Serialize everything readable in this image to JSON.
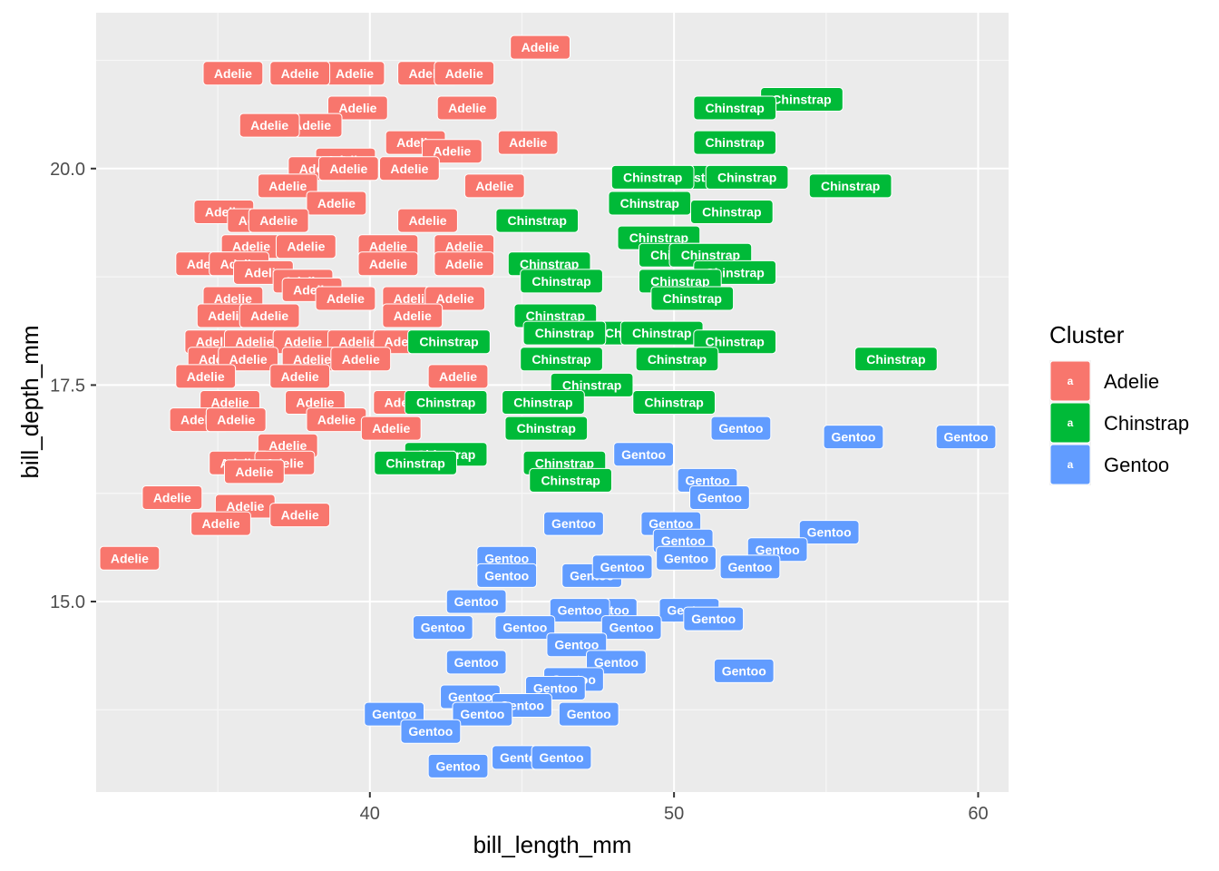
{
  "chart_data": {
    "type": "scatter",
    "title": "",
    "xlabel": "bill_length_mm",
    "ylabel": "bill_depth_mm",
    "xlim": [
      31,
      61
    ],
    "ylim": [
      12.8,
      21.8
    ],
    "x_ticks": [
      40,
      50,
      60
    ],
    "x_tick_labels": [
      "40",
      "50",
      "60"
    ],
    "y_ticks": [
      15.0,
      17.5,
      20.0
    ],
    "y_tick_labels": [
      "15.0",
      "17.5",
      "20.0"
    ],
    "grid": true,
    "legend": {
      "title": "Cluster",
      "position": "right",
      "key_glyph": "a",
      "entries": [
        {
          "label": "Adelie",
          "color": "#F8766D"
        },
        {
          "label": "Chinstrap",
          "color": "#00BA38"
        },
        {
          "label": "Gentoo",
          "color": "#619CFF"
        }
      ]
    },
    "series": [
      {
        "name": "Adelie",
        "color": "#F8766D",
        "points": [
          [
            45.6,
            21.4
          ],
          [
            35.5,
            21.1
          ],
          [
            39.5,
            21.1
          ],
          [
            37.7,
            21.1
          ],
          [
            41.9,
            21.1
          ],
          [
            43.1,
            21.1
          ],
          [
            39.6,
            20.7
          ],
          [
            43.2,
            20.7
          ],
          [
            38.1,
            20.5
          ],
          [
            36.7,
            20.5
          ],
          [
            41.5,
            20.3
          ],
          [
            42.7,
            20.2
          ],
          [
            45.2,
            20.3
          ],
          [
            39.2,
            20.1
          ],
          [
            38.3,
            20.0
          ],
          [
            39.3,
            20.0
          ],
          [
            41.3,
            20.0
          ],
          [
            37.3,
            19.8
          ],
          [
            44.1,
            19.8
          ],
          [
            38.9,
            19.6
          ],
          [
            35.2,
            19.5
          ],
          [
            36.3,
            19.4
          ],
          [
            41.9,
            19.4
          ],
          [
            37.0,
            19.4
          ],
          [
            36.1,
            19.1
          ],
          [
            37.9,
            19.1
          ],
          [
            40.6,
            19.1
          ],
          [
            43.1,
            19.1
          ],
          [
            34.6,
            18.9
          ],
          [
            35.7,
            18.9
          ],
          [
            40.6,
            18.9
          ],
          [
            36.5,
            18.8
          ],
          [
            43.1,
            18.9
          ],
          [
            37.8,
            18.7
          ],
          [
            38.1,
            18.6
          ],
          [
            35.5,
            18.5
          ],
          [
            39.2,
            18.5
          ],
          [
            41.4,
            18.5
          ],
          [
            42.8,
            18.5
          ],
          [
            35.3,
            18.3
          ],
          [
            36.7,
            18.3
          ],
          [
            41.4,
            18.3
          ],
          [
            34.9,
            18.0
          ],
          [
            36.2,
            18.0
          ],
          [
            37.8,
            18.0
          ],
          [
            39.6,
            18.0
          ],
          [
            41.1,
            18.0
          ],
          [
            35.0,
            17.8
          ],
          [
            36.0,
            17.8
          ],
          [
            38.1,
            17.8
          ],
          [
            39.7,
            17.8
          ],
          [
            34.6,
            17.6
          ],
          [
            37.7,
            17.6
          ],
          [
            42.9,
            17.6
          ],
          [
            35.4,
            17.3
          ],
          [
            38.2,
            17.3
          ],
          [
            41.1,
            17.3
          ],
          [
            34.4,
            17.1
          ],
          [
            35.6,
            17.1
          ],
          [
            38.9,
            17.1
          ],
          [
            40.7,
            17.0
          ],
          [
            37.3,
            16.8
          ],
          [
            35.7,
            16.6
          ],
          [
            37.2,
            16.6
          ],
          [
            36.2,
            16.5
          ],
          [
            35.9,
            16.1
          ],
          [
            33.5,
            16.2
          ],
          [
            37.7,
            16.0
          ],
          [
            35.1,
            15.9
          ],
          [
            32.1,
            15.5
          ]
        ]
      },
      {
        "name": "Chinstrap",
        "color": "#00BA38",
        "points": [
          [
            54.2,
            20.8
          ],
          [
            52.0,
            20.7
          ],
          [
            52.0,
            20.3
          ],
          [
            50.7,
            19.9
          ],
          [
            52.4,
            19.9
          ],
          [
            49.3,
            19.9
          ],
          [
            55.8,
            19.8
          ],
          [
            49.2,
            19.6
          ],
          [
            51.9,
            19.5
          ],
          [
            45.5,
            19.4
          ],
          [
            49.5,
            19.2
          ],
          [
            50.2,
            19.0
          ],
          [
            51.2,
            19.0
          ],
          [
            45.9,
            18.9
          ],
          [
            52.0,
            18.8
          ],
          [
            46.3,
            18.7
          ],
          [
            50.2,
            18.7
          ],
          [
            50.6,
            18.5
          ],
          [
            46.1,
            18.3
          ],
          [
            48.7,
            18.1
          ],
          [
            42.6,
            18.0
          ],
          [
            46.4,
            18.1
          ],
          [
            49.6,
            18.1
          ],
          [
            52.0,
            18.0
          ],
          [
            50.1,
            17.8
          ],
          [
            57.3,
            17.8
          ],
          [
            46.3,
            17.8
          ],
          [
            47.3,
            17.5
          ],
          [
            50.0,
            17.3
          ],
          [
            45.7,
            17.3
          ],
          [
            42.5,
            17.3
          ],
          [
            45.8,
            17.0
          ],
          [
            42.5,
            16.7
          ],
          [
            41.5,
            16.6
          ],
          [
            46.4,
            16.6
          ],
          [
            46.6,
            16.4
          ]
        ]
      },
      {
        "name": "Gentoo",
        "color": "#619CFF",
        "points": [
          [
            52.2,
            17.0
          ],
          [
            55.9,
            16.9
          ],
          [
            59.6,
            16.9
          ],
          [
            49.0,
            16.7
          ],
          [
            51.1,
            16.4
          ],
          [
            51.5,
            16.2
          ],
          [
            46.7,
            15.9
          ],
          [
            49.9,
            15.9
          ],
          [
            55.1,
            15.8
          ],
          [
            50.3,
            15.7
          ],
          [
            53.4,
            15.6
          ],
          [
            52.5,
            15.4
          ],
          [
            44.5,
            15.5
          ],
          [
            50.4,
            15.5
          ],
          [
            47.3,
            15.3
          ],
          [
            48.3,
            15.4
          ],
          [
            44.5,
            15.3
          ],
          [
            47.8,
            14.9
          ],
          [
            50.5,
            14.9
          ],
          [
            43.5,
            15.0
          ],
          [
            46.9,
            14.9
          ],
          [
            48.6,
            14.7
          ],
          [
            51.3,
            14.8
          ],
          [
            42.4,
            14.7
          ],
          [
            45.1,
            14.7
          ],
          [
            46.8,
            14.5
          ],
          [
            48.1,
            14.3
          ],
          [
            43.5,
            14.3
          ],
          [
            46.7,
            14.1
          ],
          [
            52.3,
            14.2
          ],
          [
            46.1,
            14.0
          ],
          [
            43.3,
            13.9
          ],
          [
            45.0,
            13.8
          ],
          [
            40.8,
            13.7
          ],
          [
            43.7,
            13.7
          ],
          [
            47.2,
            13.7
          ],
          [
            42.0,
            13.5
          ],
          [
            45.0,
            13.2
          ],
          [
            42.9,
            13.1
          ],
          [
            46.3,
            13.2
          ]
        ]
      }
    ]
  }
}
